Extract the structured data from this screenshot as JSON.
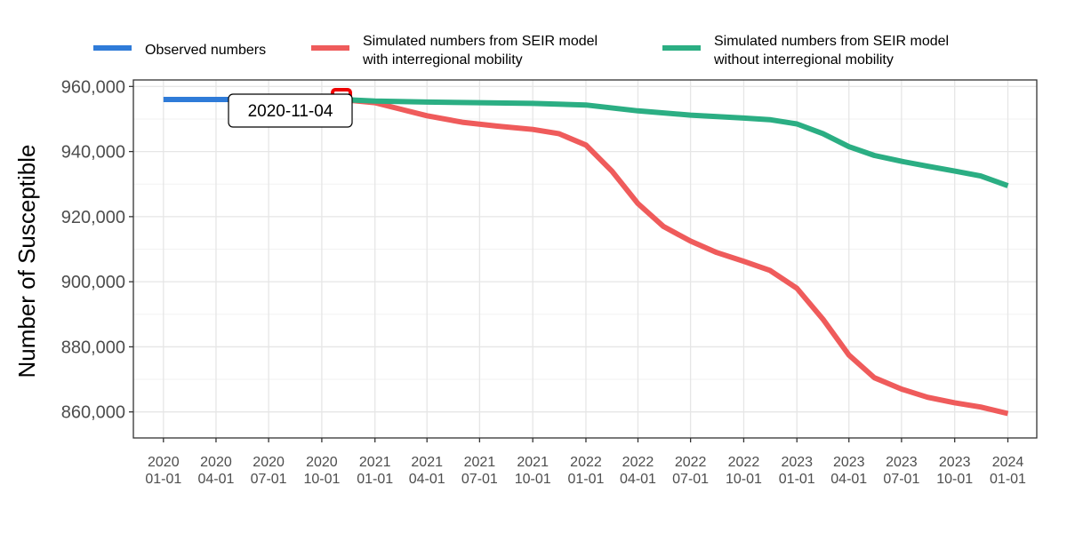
{
  "chart_data": {
    "type": "line",
    "title": "",
    "xlabel": "",
    "ylabel": "Number of Susceptible",
    "ylim": [
      852000,
      962000
    ],
    "xlim": [
      "2019-11-10",
      "2024-02-20"
    ],
    "grid": true,
    "legend_position": "top",
    "y_ticks": [
      {
        "value": 860000,
        "label": "860,000"
      },
      {
        "value": 880000,
        "label": "880,000"
      },
      {
        "value": 900000,
        "label": "900,000"
      },
      {
        "value": 920000,
        "label": "920,000"
      },
      {
        "value": 940000,
        "label": "940,000"
      },
      {
        "value": 960000,
        "label": "960,000"
      }
    ],
    "x_ticks": [
      {
        "date": "2020-01-01",
        "line1": "2020",
        "line2": "01-01"
      },
      {
        "date": "2020-04-01",
        "line1": "2020",
        "line2": "04-01"
      },
      {
        "date": "2020-07-01",
        "line1": "2020",
        "line2": "07-01"
      },
      {
        "date": "2020-10-01",
        "line1": "2020",
        "line2": "10-01"
      },
      {
        "date": "2021-01-01",
        "line1": "2021",
        "line2": "01-01"
      },
      {
        "date": "2021-04-01",
        "line1": "2021",
        "line2": "04-01"
      },
      {
        "date": "2021-07-01",
        "line1": "2021",
        "line2": "07-01"
      },
      {
        "date": "2021-10-01",
        "line1": "2021",
        "line2": "10-01"
      },
      {
        "date": "2022-01-01",
        "line1": "2022",
        "line2": "01-01"
      },
      {
        "date": "2022-04-01",
        "line1": "2022",
        "line2": "04-01"
      },
      {
        "date": "2022-07-01",
        "line1": "2022",
        "line2": "07-01"
      },
      {
        "date": "2022-10-01",
        "line1": "2022",
        "line2": "10-01"
      },
      {
        "date": "2023-01-01",
        "line1": "2023",
        "line2": "01-01"
      },
      {
        "date": "2023-04-01",
        "line1": "2023",
        "line2": "04-01"
      },
      {
        "date": "2023-07-01",
        "line1": "2023",
        "line2": "07-01"
      },
      {
        "date": "2023-10-01",
        "line1": "2023",
        "line2": "10-01"
      },
      {
        "date": "2024-01-01",
        "line1": "2024",
        "line2": "01-01"
      }
    ],
    "annotation": {
      "label": "2020-11-04",
      "date": "2020-11-04",
      "value": 956000,
      "marker_color": "#ee0000"
    },
    "series": [
      {
        "name_lines": [
          "Observed numbers"
        ],
        "color": "#2f7bd8",
        "points": [
          {
            "x": "2020-01-01",
            "y": 956000
          },
          {
            "x": "2020-11-04",
            "y": 956000
          }
        ]
      },
      {
        "name_lines": [
          "Simulated numbers from SEIR model",
          "with interregional mobility"
        ],
        "color": "#ef5b5b",
        "points": [
          {
            "x": "2020-11-04",
            "y": 956000
          },
          {
            "x": "2021-01-01",
            "y": 955000
          },
          {
            "x": "2021-02-15",
            "y": 953000
          },
          {
            "x": "2021-04-01",
            "y": 951000
          },
          {
            "x": "2021-06-01",
            "y": 949000
          },
          {
            "x": "2021-08-01",
            "y": 947800
          },
          {
            "x": "2021-10-01",
            "y": 946800
          },
          {
            "x": "2021-11-15",
            "y": 945500
          },
          {
            "x": "2022-01-01",
            "y": 942000
          },
          {
            "x": "2022-02-15",
            "y": 934000
          },
          {
            "x": "2022-04-01",
            "y": 924000
          },
          {
            "x": "2022-05-15",
            "y": 917000
          },
          {
            "x": "2022-07-01",
            "y": 912500
          },
          {
            "x": "2022-08-15",
            "y": 909000
          },
          {
            "x": "2022-10-01",
            "y": 906300
          },
          {
            "x": "2022-11-15",
            "y": 903500
          },
          {
            "x": "2023-01-01",
            "y": 898000
          },
          {
            "x": "2023-02-15",
            "y": 888500
          },
          {
            "x": "2023-04-01",
            "y": 877500
          },
          {
            "x": "2023-05-15",
            "y": 870500
          },
          {
            "x": "2023-07-01",
            "y": 867000
          },
          {
            "x": "2023-08-15",
            "y": 864500
          },
          {
            "x": "2023-10-01",
            "y": 862800
          },
          {
            "x": "2023-11-15",
            "y": 861500
          },
          {
            "x": "2024-01-01",
            "y": 859500
          }
        ]
      },
      {
        "name_lines": [
          "Simulated numbers from SEIR model",
          "without interregional mobility"
        ],
        "color": "#2bae83",
        "points": [
          {
            "x": "2020-11-04",
            "y": 956000
          },
          {
            "x": "2021-01-01",
            "y": 955500
          },
          {
            "x": "2021-04-01",
            "y": 955200
          },
          {
            "x": "2021-07-01",
            "y": 955000
          },
          {
            "x": "2021-10-01",
            "y": 954800
          },
          {
            "x": "2022-01-01",
            "y": 954300
          },
          {
            "x": "2022-04-01",
            "y": 952500
          },
          {
            "x": "2022-07-01",
            "y": 951200
          },
          {
            "x": "2022-10-01",
            "y": 950300
          },
          {
            "x": "2022-11-15",
            "y": 949800
          },
          {
            "x": "2023-01-01",
            "y": 948500
          },
          {
            "x": "2023-02-15",
            "y": 945500
          },
          {
            "x": "2023-04-01",
            "y": 941500
          },
          {
            "x": "2023-05-15",
            "y": 938800
          },
          {
            "x": "2023-07-01",
            "y": 937000
          },
          {
            "x": "2023-08-15",
            "y": 935500
          },
          {
            "x": "2023-10-01",
            "y": 934000
          },
          {
            "x": "2023-11-15",
            "y": 932500
          },
          {
            "x": "2024-01-01",
            "y": 929500
          }
        ]
      }
    ]
  }
}
